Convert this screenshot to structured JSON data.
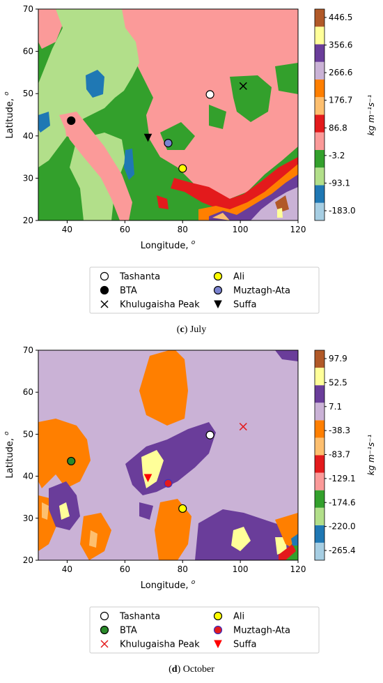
{
  "chart_data": [
    {
      "type": "contour",
      "caption_letter": "c",
      "caption_text": "July",
      "xlabel": "Longitude,",
      "xlabel_sup": "o",
      "ylabel": "Latitude,",
      "ylabel_sup": "o",
      "xlim": [
        30,
        120
      ],
      "ylim": [
        20,
        70
      ],
      "xticks": [
        "40",
        "60",
        "80",
        "100",
        "120"
      ],
      "yticks": [
        "20",
        "30",
        "40",
        "50",
        "60",
        "70"
      ],
      "colorbar_label": "kg m⁻¹s⁻¹",
      "colorbar_ticks": [
        "446.5",
        "356.6",
        "266.6",
        "176.7",
        "86.8",
        "-3.2",
        "-93.1",
        "-183.0"
      ],
      "colorbar_levels": [
        "#a6cee3",
        "#1f78b4",
        "#b2df8a",
        "#33a02c",
        "#fb9a99",
        "#e31a1c",
        "#fdbf6f",
        "#ff7f00",
        "#cab2d6",
        "#6a3d9a",
        "#ffff99",
        "#b15928"
      ],
      "stations": [
        {
          "name": "Tashanta",
          "lon": 89.5,
          "lat": 49.8,
          "marker": "circle",
          "face": "#ffffff",
          "edge": "#000000"
        },
        {
          "name": "BTA",
          "lon": 41.4,
          "lat": 43.6,
          "marker": "circle",
          "face": "#000000",
          "edge": "#000000"
        },
        {
          "name": "Khulugaisha Peak",
          "lon": 101,
          "lat": 51.8,
          "marker": "x",
          "face": "#000000",
          "edge": "#000000"
        },
        {
          "name": "Ali",
          "lon": 80,
          "lat": 32.3,
          "marker": "circle",
          "face": "#ffff00",
          "edge": "#000000"
        },
        {
          "name": "Muztagh-Ata",
          "lon": 75,
          "lat": 38.3,
          "marker": "circle",
          "face": "#7a83d0",
          "edge": "#000000"
        },
        {
          "name": "Suffa",
          "lon": 68,
          "lat": 39.6,
          "marker": "triangle",
          "face": "#000000",
          "edge": "#000000"
        }
      ]
    },
    {
      "type": "contour",
      "caption_letter": "d",
      "caption_text": "October",
      "xlabel": "Longitude,",
      "xlabel_sup": "o",
      "ylabel": "Latitude,",
      "ylabel_sup": "o",
      "xlim": [
        30,
        120
      ],
      "ylim": [
        20,
        70
      ],
      "xticks": [
        "40",
        "60",
        "80",
        "100",
        "120"
      ],
      "yticks": [
        "20",
        "30",
        "40",
        "50",
        "60",
        "70"
      ],
      "colorbar_label": "kg m⁻¹s⁻¹",
      "colorbar_ticks": [
        "97.9",
        "52.5",
        "7.1",
        "-38.3",
        "-83.7",
        "-129.1",
        "-174.6",
        "-220.0",
        "-265.4"
      ],
      "colorbar_levels": [
        "#a6cee3",
        "#1f78b4",
        "#b2df8a",
        "#33a02c",
        "#fb9a99",
        "#e31a1c",
        "#fdbf6f",
        "#ff7f00",
        "#cab2d6",
        "#6a3d9a",
        "#ffff99",
        "#b15928"
      ],
      "stations": [
        {
          "name": "Tashanta",
          "lon": 89.5,
          "lat": 49.8,
          "marker": "circle",
          "face": "#ffffff",
          "edge": "#000000"
        },
        {
          "name": "BTA",
          "lon": 41.4,
          "lat": 43.6,
          "marker": "circle",
          "face": "#2a8a2a",
          "edge": "#000000"
        },
        {
          "name": "Khulugaisha Peak",
          "lon": 101,
          "lat": 51.8,
          "marker": "x",
          "face": "#e31a1c",
          "edge": "#e31a1c"
        },
        {
          "name": "Ali",
          "lon": 80,
          "lat": 32.3,
          "marker": "circle",
          "face": "#ffff00",
          "edge": "#000000"
        },
        {
          "name": "Muztagh-Ata",
          "lon": 75,
          "lat": 38.3,
          "marker": "circle",
          "face": "#e31a1c",
          "edge": "#3a2fc0"
        },
        {
          "name": "Suffa",
          "lon": 68,
          "lat": 39.6,
          "marker": "triangle",
          "face": "#ff0000",
          "edge": "#ff0000"
        }
      ]
    }
  ]
}
